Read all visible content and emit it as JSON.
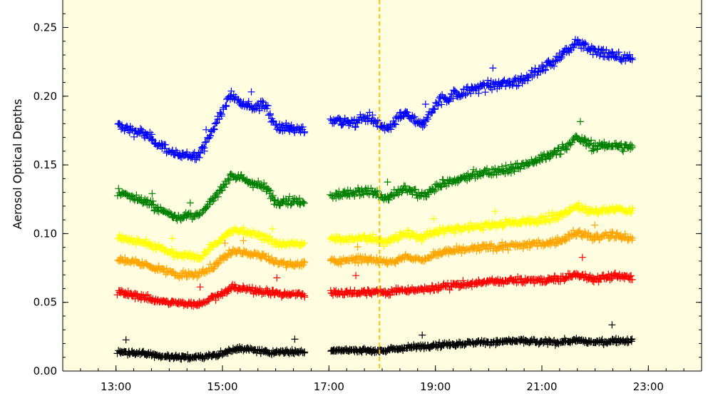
{
  "chart_data": {
    "type": "scatter",
    "title": "",
    "xlabel": "",
    "ylabel": "Aerosol Optical Depths",
    "xlim": [
      "12:00",
      "24:00"
    ],
    "ylim": [
      0.0,
      0.27
    ],
    "x_ticks": [
      "13:00",
      "15:00",
      "17:00",
      "19:00",
      "21:00",
      "23:00"
    ],
    "y_ticks": [
      "0.00",
      "0.05",
      "0.10",
      "0.15",
      "0.20",
      "0.25"
    ],
    "background_color": "#fffde0",
    "marker": "plus",
    "grid": false,
    "legend": "none",
    "reference_line": {
      "x": "17:57",
      "color": "#ffc200",
      "style": "dashed"
    },
    "series": [
      {
        "color": "#0000ff",
        "x": [
          "13:05",
          "13:30",
          "13:50",
          "14:10",
          "14:25",
          "14:35",
          "14:55",
          "15:10",
          "15:20",
          "15:35",
          "15:50",
          "16:00",
          "16:15",
          "16:30",
          "17:05",
          "17:25",
          "17:45",
          "18:05",
          "18:25",
          "18:45",
          "19:05",
          "19:30",
          "20:00",
          "20:30",
          "21:00",
          "21:20",
          "21:40",
          "22:00",
          "22:20",
          "22:40"
        ],
        "y": [
          0.178,
          0.173,
          0.165,
          0.156,
          0.157,
          0.158,
          0.183,
          0.201,
          0.197,
          0.192,
          0.193,
          0.178,
          0.177,
          0.175,
          0.183,
          0.18,
          0.185,
          0.175,
          0.188,
          0.178,
          0.197,
          0.203,
          0.208,
          0.21,
          0.22,
          0.228,
          0.24,
          0.232,
          0.23,
          0.226
        ]
      },
      {
        "color": "#008000",
        "x": [
          "13:05",
          "13:30",
          "13:50",
          "14:10",
          "14:25",
          "14:35",
          "14:55",
          "15:10",
          "15:20",
          "15:35",
          "15:50",
          "16:00",
          "16:15",
          "16:30",
          "17:05",
          "17:25",
          "17:45",
          "18:05",
          "18:25",
          "18:45",
          "19:05",
          "19:30",
          "20:00",
          "20:30",
          "21:00",
          "21:20",
          "21:40",
          "22:00",
          "22:20",
          "22:40"
        ],
        "y": [
          0.13,
          0.124,
          0.117,
          0.112,
          0.113,
          0.113,
          0.13,
          0.143,
          0.14,
          0.137,
          0.133,
          0.123,
          0.124,
          0.123,
          0.128,
          0.13,
          0.131,
          0.125,
          0.133,
          0.127,
          0.136,
          0.14,
          0.145,
          0.148,
          0.155,
          0.16,
          0.17,
          0.163,
          0.165,
          0.162
        ]
      },
      {
        "color": "#ffff00",
        "x": [
          "13:05",
          "13:30",
          "13:50",
          "14:10",
          "14:25",
          "14:35",
          "14:55",
          "15:10",
          "15:20",
          "15:35",
          "15:50",
          "16:00",
          "16:15",
          "16:30",
          "17:05",
          "17:25",
          "17:45",
          "18:05",
          "18:25",
          "18:45",
          "19:05",
          "19:30",
          "20:00",
          "20:30",
          "21:00",
          "21:20",
          "21:40",
          "22:00",
          "22:20",
          "22:40"
        ],
        "y": [
          0.097,
          0.094,
          0.089,
          0.084,
          0.084,
          0.083,
          0.094,
          0.102,
          0.102,
          0.1,
          0.097,
          0.093,
          0.092,
          0.092,
          0.096,
          0.096,
          0.097,
          0.094,
          0.1,
          0.097,
          0.102,
          0.104,
          0.106,
          0.108,
          0.11,
          0.113,
          0.12,
          0.116,
          0.118,
          0.117
        ]
      },
      {
        "color": "#ffa500",
        "x": [
          "13:05",
          "13:30",
          "13:50",
          "14:10",
          "14:25",
          "14:35",
          "14:55",
          "15:10",
          "15:20",
          "15:35",
          "15:50",
          "16:00",
          "16:15",
          "16:30",
          "17:05",
          "17:25",
          "17:45",
          "18:05",
          "18:25",
          "18:45",
          "19:05",
          "19:30",
          "20:00",
          "20:30",
          "21:00",
          "21:20",
          "21:40",
          "22:00",
          "22:20",
          "22:40"
        ],
        "y": [
          0.081,
          0.078,
          0.074,
          0.07,
          0.07,
          0.07,
          0.079,
          0.087,
          0.087,
          0.085,
          0.083,
          0.079,
          0.078,
          0.078,
          0.08,
          0.081,
          0.082,
          0.079,
          0.083,
          0.081,
          0.086,
          0.088,
          0.09,
          0.091,
          0.093,
          0.095,
          0.101,
          0.097,
          0.099,
          0.097
        ]
      },
      {
        "color": "#ff0000",
        "x": [
          "13:05",
          "13:30",
          "13:50",
          "14:10",
          "14:25",
          "14:35",
          "14:55",
          "15:10",
          "15:20",
          "15:35",
          "15:50",
          "16:00",
          "16:15",
          "16:30",
          "17:05",
          "17:25",
          "17:45",
          "18:05",
          "18:25",
          "18:45",
          "19:05",
          "19:30",
          "20:00",
          "20:30",
          "21:00",
          "21:20",
          "21:40",
          "22:00",
          "22:20",
          "22:40"
        ],
        "y": [
          0.057,
          0.054,
          0.051,
          0.049,
          0.049,
          0.049,
          0.055,
          0.06,
          0.06,
          0.059,
          0.058,
          0.056,
          0.056,
          0.056,
          0.057,
          0.057,
          0.058,
          0.057,
          0.059,
          0.059,
          0.061,
          0.063,
          0.065,
          0.066,
          0.066,
          0.067,
          0.07,
          0.067,
          0.069,
          0.068
        ]
      },
      {
        "color": "#000000",
        "x": [
          "13:05",
          "13:30",
          "13:50",
          "14:10",
          "14:25",
          "14:35",
          "14:55",
          "15:10",
          "15:20",
          "15:35",
          "15:50",
          "16:00",
          "16:15",
          "16:30",
          "17:05",
          "17:25",
          "17:45",
          "18:05",
          "18:25",
          "18:45",
          "19:05",
          "19:30",
          "20:00",
          "20:30",
          "21:00",
          "21:20",
          "21:40",
          "22:00",
          "22:20",
          "22:40"
        ],
        "y": [
          0.014,
          0.013,
          0.011,
          0.01,
          0.01,
          0.01,
          0.012,
          0.015,
          0.017,
          0.015,
          0.014,
          0.014,
          0.014,
          0.014,
          0.015,
          0.015,
          0.015,
          0.015,
          0.017,
          0.018,
          0.019,
          0.02,
          0.021,
          0.022,
          0.021,
          0.021,
          0.022,
          0.021,
          0.022,
          0.022
        ]
      }
    ]
  }
}
